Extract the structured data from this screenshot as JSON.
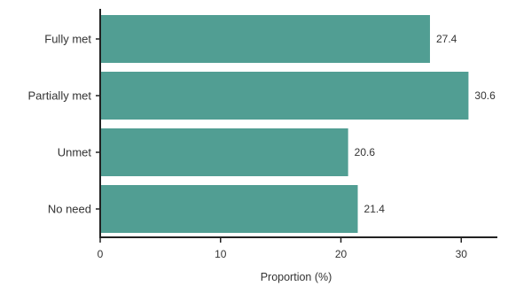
{
  "chart_data": {
    "type": "bar",
    "orientation": "horizontal",
    "categories": [
      "Fully met",
      "Partially met",
      "Unmet",
      "No need"
    ],
    "values": [
      27.4,
      30.6,
      20.6,
      21.4
    ],
    "value_labels": [
      "27.4",
      "30.6",
      "20.6",
      "21.4"
    ],
    "xlabel": "Proportion (%)",
    "ylabel": "",
    "title": "",
    "xlim": [
      0,
      33
    ],
    "xticks": [
      0,
      10,
      20,
      30
    ],
    "xtick_labels": [
      "0",
      "10",
      "20",
      "30"
    ],
    "grid": false,
    "legend": "none",
    "bar_color": "#519e93",
    "axis_color": "#222222",
    "text_color": "#333333"
  }
}
